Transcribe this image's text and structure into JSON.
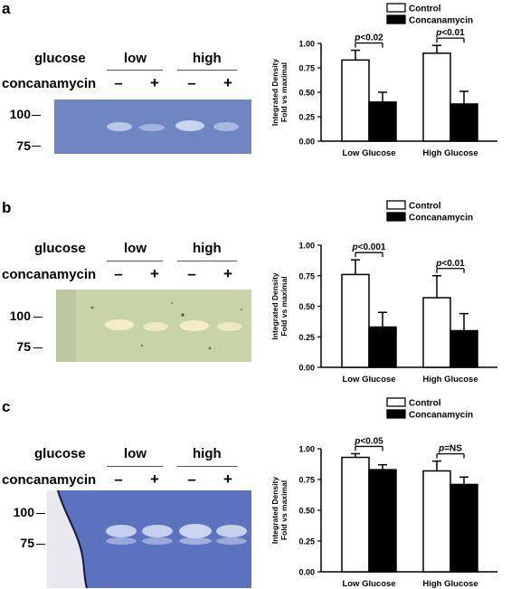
{
  "panels": [
    {
      "letter": "a",
      "row_labels": {
        "glucose": "glucose",
        "concanamycin": "concanamycin"
      },
      "groups": [
        "low",
        "high"
      ],
      "lane_signs": [
        "–",
        "+",
        "–",
        "+"
      ],
      "mw_markers": [
        "100",
        "75"
      ],
      "gel_colors": {
        "background": "#6f86c2",
        "band": "#cdd8f0"
      },
      "chart_data": {
        "type": "bar",
        "categories": [
          "Low Glucose",
          "High Glucose"
        ],
        "series": [
          {
            "name": "Control",
            "values": [
              0.83,
              0.9
            ],
            "errors": [
              0.1,
              0.08
            ],
            "color": "#ffffff"
          },
          {
            "name": "Concanamycin",
            "values": [
              0.4,
              0.38
            ],
            "errors": [
              0.1,
              0.13
            ],
            "color": "#000000"
          }
        ],
        "ylabel": "Integrated Density\nFold vs maximal",
        "ylim": [
          0,
          1
        ],
        "yticks": [
          "0.00",
          "0.25",
          "0.50",
          "0.75",
          "1.00"
        ],
        "annotations": [
          "p<0.02",
          "p<0.01"
        ],
        "legend_position": "top-right"
      }
    },
    {
      "letter": "b",
      "row_labels": {
        "glucose": "glucose",
        "concanamycin": "concanamycin"
      },
      "groups": [
        "low",
        "high"
      ],
      "lane_signs": [
        "–",
        "+",
        "–",
        "+"
      ],
      "mw_markers": [
        "100",
        "75"
      ],
      "gel_colors": {
        "background": "#c9d3a8",
        "band": "#f4eec8"
      },
      "chart_data": {
        "type": "bar",
        "categories": [
          "Low Glucose",
          "High Glucose"
        ],
        "series": [
          {
            "name": "Control",
            "values": [
              0.76,
              0.57
            ],
            "errors": [
              0.12,
              0.18
            ],
            "color": "#ffffff"
          },
          {
            "name": "Concanamycin",
            "values": [
              0.33,
              0.3
            ],
            "errors": [
              0.12,
              0.14
            ],
            "color": "#000000"
          }
        ],
        "ylabel": "Integrated Density\nFold vs maximal",
        "ylim": [
          0,
          1
        ],
        "yticks": [
          "0.00",
          "0.25",
          "0.50",
          "0.75",
          "1.00"
        ],
        "annotations": [
          "p<0.001",
          "p<0.01"
        ],
        "legend_position": "top-right"
      }
    },
    {
      "letter": "c",
      "row_labels": {
        "glucose": "glucose",
        "concanamycin": "concanamycin"
      },
      "groups": [
        "low",
        "high"
      ],
      "lane_signs": [
        "–",
        "+",
        "–",
        "+"
      ],
      "mw_markers": [
        "100",
        "75"
      ],
      "gel_colors": {
        "background": "#5b73bf",
        "band": "#d8e0f4"
      },
      "chart_data": {
        "type": "bar",
        "categories": [
          "Low Glucose",
          "High Glucose"
        ],
        "series": [
          {
            "name": "Control",
            "values": [
              0.93,
              0.82
            ],
            "errors": [
              0.03,
              0.08
            ],
            "color": "#ffffff"
          },
          {
            "name": "Concanamycin",
            "values": [
              0.83,
              0.71
            ],
            "errors": [
              0.04,
              0.06
            ],
            "color": "#000000"
          }
        ],
        "ylabel": "Integrated Density\nFold vs maximal",
        "ylim": [
          0,
          1
        ],
        "yticks": [
          "0.00",
          "0.25",
          "0.50",
          "0.75",
          "1.00"
        ],
        "annotations": [
          "p<0.05",
          "p=NS"
        ],
        "legend_position": "top-right"
      }
    }
  ]
}
